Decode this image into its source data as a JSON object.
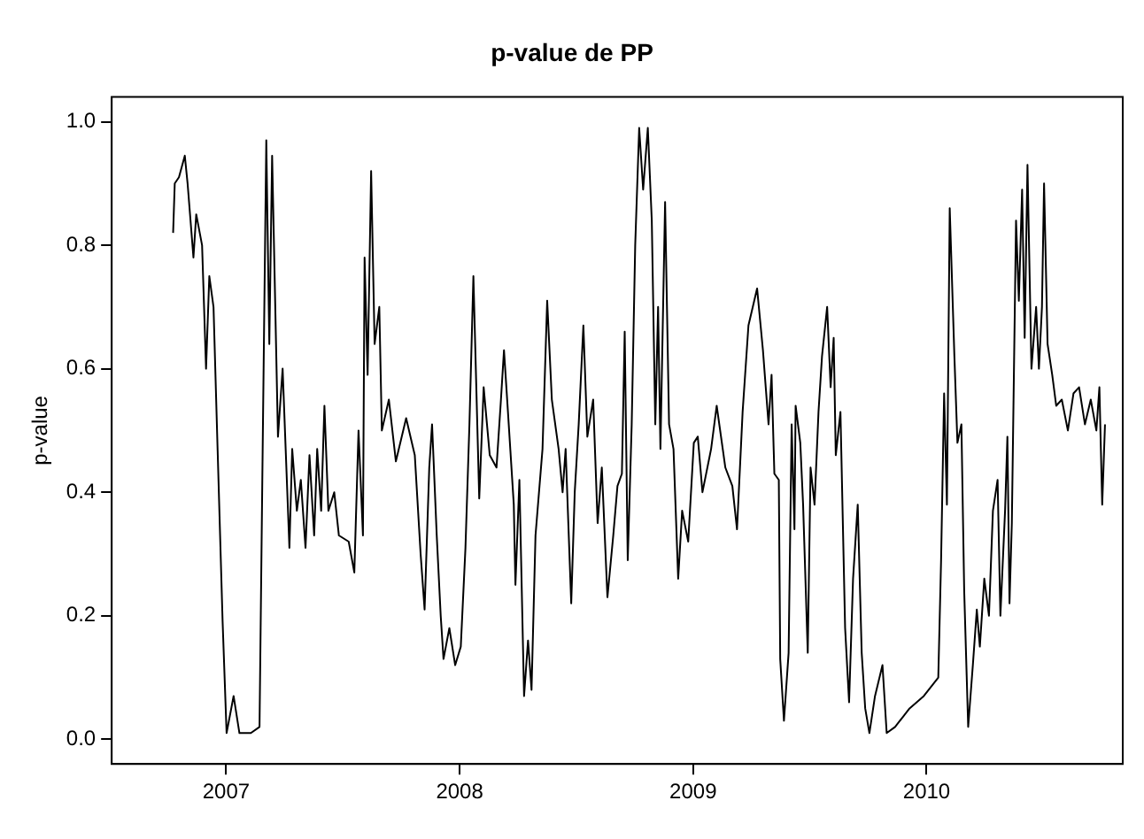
{
  "chart_data": {
    "type": "line",
    "title": "p-value de PP",
    "ylabel": "p-value",
    "xlim": [
      2006.51,
      2010.84
    ],
    "xticks": [
      2007,
      2008,
      2009,
      2010
    ],
    "ylim": [
      -0.04,
      1.04
    ],
    "yticks": [
      {
        "value": 0,
        "label": "0.0"
      },
      {
        "value": 0.2,
        "label": "0.2"
      },
      {
        "value": 0.4,
        "label": "0.4"
      },
      {
        "value": 0.6,
        "label": "0.6"
      },
      {
        "value": 0.8,
        "label": "0.8"
      },
      {
        "value": 1,
        "label": "1.0"
      }
    ],
    "grid": false,
    "legend": false,
    "series": [
      {
        "color": "#000000",
        "x": [
          2006.773,
          2006.78,
          2006.798,
          2006.823,
          2006.835,
          2006.86,
          2006.872,
          2006.897,
          2006.914,
          2006.928,
          2006.946,
          2006.965,
          2006.985,
          2007.002,
          2007.032,
          2007.057,
          2007.106,
          2007.143,
          2007.155,
          2007.172,
          2007.185,
          2007.197,
          2007.222,
          2007.242,
          2007.271,
          2007.283,
          2007.303,
          2007.32,
          2007.34,
          2007.357,
          2007.377,
          2007.39,
          2007.407,
          2007.421,
          2007.438,
          2007.463,
          2007.483,
          2007.525,
          2007.549,
          2007.567,
          2007.586,
          2007.593,
          2007.606,
          2007.621,
          2007.636,
          2007.656,
          2007.667,
          2007.697,
          2007.727,
          2007.771,
          2007.808,
          2007.833,
          2007.85,
          2007.87,
          2007.882,
          2007.902,
          2007.919,
          2007.931,
          2007.956,
          2007.981,
          2008.005,
          2008.025,
          2008.042,
          2008.059,
          2008.084,
          2008.103,
          2008.129,
          2008.158,
          2008.177,
          2008.19,
          2008.207,
          2008.232,
          2008.239,
          2008.256,
          2008.276,
          2008.293,
          2008.308,
          2008.325,
          2008.355,
          2008.375,
          2008.395,
          2008.424,
          2008.441,
          2008.454,
          2008.478,
          2008.493,
          2008.51,
          2008.53,
          2008.547,
          2008.572,
          2008.591,
          2008.609,
          2008.633,
          2008.658,
          2008.676,
          2008.695,
          2008.707,
          2008.72,
          2008.737,
          2008.752,
          2008.769,
          2008.786,
          2008.806,
          2008.823,
          2008.838,
          2008.85,
          2008.86,
          2008.88,
          2008.897,
          2008.916,
          2008.936,
          2008.953,
          2008.979,
          2009.003,
          2009.02,
          2009.04,
          2009.077,
          2009.101,
          2009.138,
          2009.168,
          2009.188,
          2009.212,
          2009.237,
          2009.274,
          2009.299,
          2009.323,
          2009.336,
          2009.348,
          2009.367,
          2009.373,
          2009.389,
          2009.409,
          2009.422,
          2009.434,
          2009.439,
          2009.459,
          2009.471,
          2009.491,
          2009.503,
          2009.52,
          2009.537,
          2009.552,
          2009.574,
          2009.589,
          2009.602,
          2009.611,
          2009.631,
          2009.651,
          2009.668,
          2009.685,
          2009.705,
          2009.722,
          2009.737,
          2009.755,
          2009.779,
          2009.811,
          2009.829,
          2009.865,
          2009.927,
          2009.988,
          2010.05,
          2010.062,
          2010.075,
          2010.087,
          2010.099,
          2010.119,
          2010.132,
          2010.149,
          2010.161,
          2010.178,
          2010.198,
          2010.215,
          2010.228,
          2010.247,
          2010.267,
          2010.284,
          2010.304,
          2010.316,
          2010.336,
          2010.346,
          2010.355,
          2010.365,
          2010.383,
          2010.395,
          2010.409,
          2010.42,
          2010.432,
          2010.449,
          2010.469,
          2010.481,
          2010.494,
          2010.503,
          2010.518,
          2010.538,
          2010.555,
          2010.579,
          2010.605,
          2010.629,
          2010.653,
          2010.678,
          2010.703,
          2010.727,
          2010.74,
          2010.752,
          2010.764
        ],
        "values": [
          0.82,
          0.9,
          0.91,
          0.945,
          0.9,
          0.78,
          0.85,
          0.8,
          0.6,
          0.75,
          0.7,
          0.45,
          0.19,
          0.01,
          0.07,
          0.01,
          0.01,
          0.02,
          0.42,
          0.97,
          0.64,
          0.945,
          0.49,
          0.6,
          0.31,
          0.47,
          0.37,
          0.42,
          0.31,
          0.46,
          0.33,
          0.47,
          0.37,
          0.54,
          0.37,
          0.4,
          0.33,
          0.32,
          0.27,
          0.5,
          0.33,
          0.78,
          0.59,
          0.92,
          0.64,
          0.7,
          0.5,
          0.55,
          0.45,
          0.52,
          0.46,
          0.3,
          0.21,
          0.44,
          0.51,
          0.33,
          0.2,
          0.13,
          0.18,
          0.12,
          0.15,
          0.31,
          0.51,
          0.75,
          0.39,
          0.57,
          0.46,
          0.44,
          0.55,
          0.63,
          0.53,
          0.38,
          0.25,
          0.42,
          0.07,
          0.16,
          0.08,
          0.33,
          0.47,
          0.71,
          0.55,
          0.47,
          0.4,
          0.47,
          0.22,
          0.4,
          0.51,
          0.67,
          0.49,
          0.55,
          0.35,
          0.44,
          0.23,
          0.33,
          0.41,
          0.43,
          0.66,
          0.29,
          0.51,
          0.8,
          0.99,
          0.89,
          0.99,
          0.84,
          0.51,
          0.7,
          0.47,
          0.87,
          0.51,
          0.47,
          0.26,
          0.37,
          0.32,
          0.48,
          0.49,
          0.4,
          0.47,
          0.54,
          0.44,
          0.41,
          0.34,
          0.53,
          0.67,
          0.73,
          0.63,
          0.51,
          0.59,
          0.43,
          0.42,
          0.13,
          0.03,
          0.14,
          0.51,
          0.34,
          0.54,
          0.48,
          0.38,
          0.14,
          0.44,
          0.38,
          0.53,
          0.62,
          0.7,
          0.57,
          0.65,
          0.46,
          0.53,
          0.18,
          0.06,
          0.26,
          0.38,
          0.14,
          0.05,
          0.01,
          0.07,
          0.12,
          0.01,
          0.02,
          0.05,
          0.07,
          0.1,
          0.29,
          0.56,
          0.38,
          0.86,
          0.62,
          0.48,
          0.51,
          0.24,
          0.02,
          0.12,
          0.21,
          0.15,
          0.26,
          0.2,
          0.37,
          0.42,
          0.2,
          0.37,
          0.49,
          0.22,
          0.35,
          0.84,
          0.71,
          0.89,
          0.65,
          0.93,
          0.6,
          0.7,
          0.6,
          0.7,
          0.9,
          0.64,
          0.59,
          0.54,
          0.55,
          0.5,
          0.56,
          0.57,
          0.51,
          0.55,
          0.5,
          0.57,
          0.38,
          0.51
        ]
      }
    ]
  }
}
